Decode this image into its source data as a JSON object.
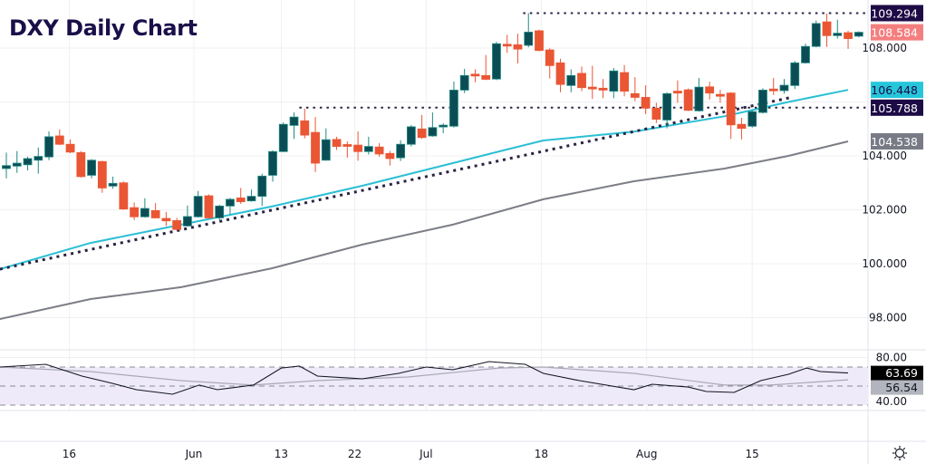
{
  "title": "DXY Daily Chart",
  "colors": {
    "up": "#0b4d55",
    "up_border": "#1f8a84",
    "down": "#ea5634",
    "ma50": "#2bbfd4",
    "ma100": "#7c7e87",
    "trend": "#2a2344",
    "title": "#1b0f4a",
    "rsi": "#131722",
    "rsi_ma": "#a9a9b4",
    "rsi_band": "#eeeaf9"
  },
  "chart_data": {
    "type": "candlestick",
    "title": "DXY Daily Chart",
    "ylim": [
      97.2,
      110.0
    ],
    "price_ticks": [
      "108.000",
      "104.000",
      "102.000",
      "100.000",
      "98.000"
    ],
    "price_tick_values": [
      108,
      104,
      102,
      100,
      98
    ],
    "x_tick_labels": [
      {
        "label": "16",
        "index": 5.9
      },
      {
        "label": "Jun",
        "index": 17.6
      },
      {
        "label": "13",
        "index": 25.8
      },
      {
        "label": "22",
        "index": 32.7
      },
      {
        "label": "Jul",
        "index": 39.4
      },
      {
        "label": "18",
        "index": 50.2
      },
      {
        "label": "Aug",
        "index": 60.1
      },
      {
        "label": "15",
        "index": 70.0
      }
    ],
    "candles_ohlc": [
      [
        103.53,
        104.12,
        103.17,
        103.64
      ],
      [
        103.62,
        104.18,
        103.37,
        103.73
      ],
      [
        103.67,
        103.97,
        103.46,
        103.9
      ],
      [
        103.84,
        104.31,
        103.34,
        103.98
      ],
      [
        103.96,
        104.91,
        103.84,
        104.71
      ],
      [
        104.74,
        104.98,
        104.4,
        104.43
      ],
      [
        104.43,
        104.61,
        104.1,
        104.14
      ],
      [
        104.12,
        104.18,
        103.2,
        103.23
      ],
      [
        103.28,
        103.88,
        103.17,
        103.84
      ],
      [
        103.79,
        103.82,
        102.63,
        102.81
      ],
      [
        102.88,
        103.23,
        102.78,
        102.98
      ],
      [
        103.0,
        103.05,
        102.0,
        102.03
      ],
      [
        102.08,
        102.27,
        101.62,
        101.74
      ],
      [
        101.74,
        102.43,
        101.71,
        102.05
      ],
      [
        101.97,
        102.25,
        101.68,
        101.7
      ],
      [
        101.68,
        101.92,
        101.4,
        101.59
      ],
      [
        101.6,
        101.7,
        101.22,
        101.27
      ],
      [
        101.4,
        102.16,
        101.38,
        101.75
      ],
      [
        101.74,
        102.7,
        101.71,
        102.5
      ],
      [
        102.52,
        102.57,
        101.68,
        101.7
      ],
      [
        101.7,
        102.19,
        101.62,
        102.14
      ],
      [
        102.14,
        102.44,
        101.81,
        102.39
      ],
      [
        102.44,
        102.81,
        102.22,
        102.3
      ],
      [
        102.33,
        102.75,
        102.3,
        102.5
      ],
      [
        102.5,
        103.34,
        102.14,
        103.25
      ],
      [
        103.28,
        104.21,
        103.04,
        104.16
      ],
      [
        104.16,
        105.24,
        104.14,
        105.17
      ],
      [
        105.13,
        105.61,
        104.63,
        105.44
      ],
      [
        105.3,
        105.75,
        104.65,
        104.77
      ],
      [
        104.87,
        105.44,
        103.4,
        103.73
      ],
      [
        103.84,
        105.02,
        103.82,
        104.6
      ],
      [
        104.61,
        104.71,
        104.22,
        104.35
      ],
      [
        104.42,
        104.54,
        103.93,
        104.38
      ],
      [
        104.4,
        104.91,
        103.82,
        104.16
      ],
      [
        104.16,
        104.71,
        104.05,
        104.35
      ],
      [
        104.33,
        104.47,
        103.97,
        104.07
      ],
      [
        104.09,
        104.18,
        103.64,
        103.9
      ],
      [
        103.93,
        104.58,
        103.81,
        104.43
      ],
      [
        104.43,
        105.14,
        104.35,
        105.08
      ],
      [
        105.0,
        105.52,
        104.63,
        104.68
      ],
      [
        104.74,
        105.61,
        104.71,
        105.05
      ],
      [
        105.08,
        105.21,
        104.84,
        105.14
      ],
      [
        105.1,
        106.76,
        105.05,
        106.44
      ],
      [
        106.44,
        107.23,
        106.33,
        106.98
      ],
      [
        107.03,
        107.21,
        106.73,
        106.98
      ],
      [
        106.98,
        107.74,
        106.81,
        106.84
      ],
      [
        106.85,
        108.23,
        106.81,
        108.16
      ],
      [
        108.14,
        108.49,
        107.82,
        108.1
      ],
      [
        108.12,
        108.53,
        107.43,
        107.96
      ],
      [
        108.1,
        109.294,
        108.03,
        108.59
      ],
      [
        108.64,
        108.68,
        107.88,
        107.91
      ],
      [
        107.93,
        107.99,
        106.87,
        107.35
      ],
      [
        107.45,
        107.6,
        106.36,
        106.65
      ],
      [
        106.61,
        107.21,
        106.36,
        106.98
      ],
      [
        107.06,
        107.31,
        106.4,
        106.53
      ],
      [
        106.55,
        107.34,
        106.11,
        106.51
      ],
      [
        106.51,
        106.85,
        106.14,
        106.44
      ],
      [
        106.4,
        107.26,
        106.14,
        107.15
      ],
      [
        107.09,
        107.37,
        106.21,
        106.4
      ],
      [
        106.31,
        106.92,
        106.03,
        106.17
      ],
      [
        106.17,
        106.62,
        105.55,
        105.77
      ],
      [
        105.77,
        105.97,
        105.22,
        105.36
      ],
      [
        105.33,
        106.35,
        105.02,
        106.31
      ],
      [
        106.4,
        106.8,
        105.97,
        106.33
      ],
      [
        106.45,
        106.5,
        105.66,
        105.69
      ],
      [
        105.67,
        106.89,
        105.64,
        106.55
      ],
      [
        106.56,
        106.75,
        106.09,
        106.33
      ],
      [
        106.28,
        106.45,
        105.97,
        106.23
      ],
      [
        106.33,
        106.36,
        104.63,
        105.15
      ],
      [
        105.17,
        105.41,
        104.61,
        105.02
      ],
      [
        105.1,
        105.7,
        105.05,
        105.64
      ],
      [
        105.61,
        106.51,
        105.57,
        106.44
      ],
      [
        106.48,
        106.89,
        106.26,
        106.42
      ],
      [
        106.42,
        106.85,
        106.31,
        106.62
      ],
      [
        106.61,
        107.52,
        106.48,
        107.45
      ],
      [
        107.45,
        108.16,
        107.42,
        108.06
      ],
      [
        108.06,
        109.02,
        108.03,
        108.91
      ],
      [
        108.97,
        109.28,
        108.04,
        108.46
      ],
      [
        108.46,
        109.05,
        108.35,
        108.55
      ],
      [
        108.57,
        108.64,
        107.97,
        108.35
      ],
      [
        108.44,
        108.62,
        108.4,
        108.584
      ]
    ],
    "ma50": [
      [
        -0.6,
        99.8
      ],
      [
        7.9,
        100.77
      ],
      [
        16.4,
        101.45
      ],
      [
        24.9,
        102.12
      ],
      [
        33.4,
        102.89
      ],
      [
        41.9,
        103.73
      ],
      [
        47.0,
        104.24
      ],
      [
        50.4,
        104.57
      ],
      [
        58.9,
        104.9
      ],
      [
        67.4,
        105.47
      ],
      [
        73.4,
        106.0
      ],
      [
        79.0,
        106.448
      ]
    ],
    "ma100": [
      [
        -0.6,
        97.95
      ],
      [
        7.9,
        98.69
      ],
      [
        16.4,
        99.13
      ],
      [
        24.9,
        99.83
      ],
      [
        33.4,
        100.71
      ],
      [
        41.9,
        101.45
      ],
      [
        50.4,
        102.39
      ],
      [
        58.9,
        103.06
      ],
      [
        67.4,
        103.53
      ],
      [
        73.4,
        104.0
      ],
      [
        79.0,
        104.538
      ]
    ],
    "trendline": [
      [
        -0.6,
        99.8
      ],
      [
        73.8,
        106.18
      ]
    ],
    "levels": [
      {
        "value": 109.294,
        "from_index": 48.5
      },
      {
        "value": 105.788,
        "from_index": 27.5
      }
    ],
    "price_tags": [
      {
        "label": "109.294",
        "value": 109.294,
        "bg": "#1d0b45",
        "fg": "#ffffff"
      },
      {
        "label": "108.584",
        "value": 108.584,
        "bg": "#f47e7e",
        "fg": "#ffffff"
      },
      {
        "label": "106.448",
        "value": 106.448,
        "bg": "#26c6da",
        "fg": "#1d0b45"
      },
      {
        "label": "105.788",
        "value": 105.788,
        "bg": "#1d0b45",
        "fg": "#ffffff"
      },
      {
        "label": "104.538",
        "value": 104.538,
        "bg": "#787b86",
        "fg": "#ffffff"
      }
    ],
    "rsi": {
      "ylim": [
        25,
        84
      ],
      "ticks": [
        "80.00",
        "40.00"
      ],
      "tick_values": [
        80,
        40
      ],
      "band": [
        30,
        70
      ],
      "mid": 50,
      "line": [
        [
          -0.6,
          70
        ],
        [
          3.7,
          72.9
        ],
        [
          7.1,
          60.5
        ],
        [
          9.6,
          53.8
        ],
        [
          12.2,
          46.2
        ],
        [
          15.6,
          41.4
        ],
        [
          18.1,
          51
        ],
        [
          19.8,
          46.2
        ],
        [
          23.2,
          51
        ],
        [
          25.8,
          69
        ],
        [
          27.5,
          71
        ],
        [
          29.2,
          60.5
        ],
        [
          33.4,
          57.6
        ],
        [
          36.8,
          63.3
        ],
        [
          39.4,
          70
        ],
        [
          41.9,
          67.1
        ],
        [
          45.3,
          75.7
        ],
        [
          48.7,
          72.9
        ],
        [
          50.4,
          63.3
        ],
        [
          53.8,
          55.7
        ],
        [
          58.9,
          46.2
        ],
        [
          60.6,
          51.9
        ],
        [
          64.0,
          49
        ],
        [
          65.7,
          44.3
        ],
        [
          68.3,
          43.3
        ],
        [
          70.8,
          55.7
        ],
        [
          73.4,
          62.4
        ],
        [
          75.1,
          69
        ],
        [
          76.4,
          65.2
        ],
        [
          79.0,
          63.69
        ]
      ],
      "ma": [
        [
          -0.6,
          70
        ],
        [
          7.9,
          65.2
        ],
        [
          16.4,
          55.7
        ],
        [
          23.2,
          51
        ],
        [
          29.2,
          55.7
        ],
        [
          37.7,
          59.5
        ],
        [
          46.2,
          69
        ],
        [
          50.4,
          70
        ],
        [
          58.9,
          63.3
        ],
        [
          67.4,
          51
        ],
        [
          71.7,
          51
        ],
        [
          79.0,
          56.54
        ]
      ],
      "tags": [
        {
          "label": "63.69",
          "value": 63.69,
          "bg": "#000000",
          "fg": "#ffffff"
        },
        {
          "label": "56.54",
          "value": 56.54,
          "bg": "#b2b5be",
          "fg": "#131722"
        }
      ]
    }
  },
  "icons": {
    "settings": "gear-icon"
  }
}
